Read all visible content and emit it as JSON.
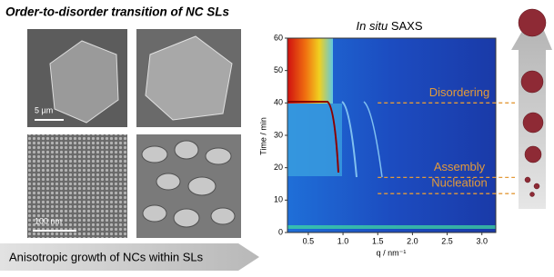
{
  "header": {
    "title": "Order-to-disorder transition of NC SLs"
  },
  "images": [
    {
      "scale_bar": "5 µm"
    },
    {
      "scale_bar": "100 nm"
    }
  ],
  "footer_arrow": {
    "text": "Anisotropic growth of NCs within SLs"
  },
  "chart_data": {
    "type": "heatmap",
    "title_italic": "In situ",
    "title": "SAXS",
    "xlabel": "q / nm⁻¹",
    "ylabel": "Time / min",
    "xlim": [
      0.2,
      3.2
    ],
    "ylim": [
      0,
      60
    ],
    "xticks": [
      0.5,
      {
        "value": 1,
        "label": "1.0"
      },
      1.5,
      {
        "value": 2,
        "label": "2.0"
      },
      2.5,
      {
        "value": 3,
        "label": "3.0"
      }
    ],
    "yticks": [
      0,
      10,
      20,
      30,
      40,
      50,
      60
    ],
    "annotations": [
      {
        "label": "Disordering",
        "y": 40
      },
      {
        "label": "Assembly",
        "y": 17
      },
      {
        "label": "Nucleation",
        "y": 12
      }
    ],
    "annotation_color": "#e39a3a"
  }
}
